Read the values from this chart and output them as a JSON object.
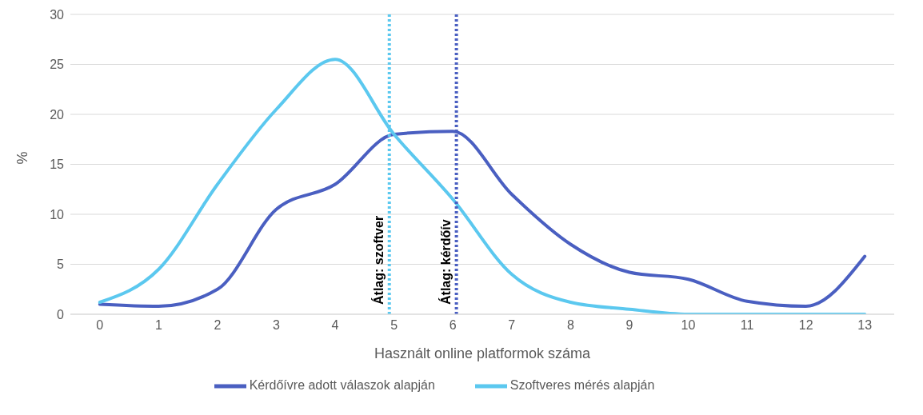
{
  "chart_data": {
    "type": "line",
    "xlabel": "Használt online platformok száma",
    "ylabel": "%",
    "x": [
      0,
      1,
      2,
      3,
      4,
      5,
      6,
      7,
      8,
      9,
      10,
      11,
      12,
      13
    ],
    "xlim": [
      -0.5,
      13.5
    ],
    "xticks": [
      0,
      1,
      2,
      3,
      4,
      5,
      6,
      7,
      8,
      9,
      10,
      11,
      12,
      13
    ],
    "ylim": [
      0,
      30
    ],
    "yticks": [
      0,
      5,
      10,
      15,
      20,
      25,
      30
    ],
    "grid": "y",
    "legend": "bottom",
    "line_style": "solid",
    "marker": "none",
    "series": [
      {
        "name": "Kérdőívre adott válaszok alapján",
        "color": "#4a5fc1",
        "values": [
          1.0,
          0.8,
          2.5,
          10.5,
          13,
          18,
          18.3,
          12,
          7,
          4.2,
          3.5,
          1.3,
          0.8,
          5.8
        ]
      },
      {
        "name": "Szoftveres mérés alapján",
        "color": "#5bc8ef",
        "values": [
          1.2,
          4.5,
          13,
          20.5,
          25.5,
          18,
          11.5,
          4,
          1.2,
          0.5,
          0,
          0,
          0,
          0
        ]
      }
    ],
    "ref_lines": [
      {
        "axis": "x",
        "value": 4.92,
        "label": "Átlag: szoftver",
        "color": "#5bc8ef",
        "line_style": "dotted"
      },
      {
        "axis": "x",
        "value": 6.06,
        "label": "Átlag: kérdőív",
        "color": "#4a5fc1",
        "line_style": "dotted"
      }
    ]
  }
}
